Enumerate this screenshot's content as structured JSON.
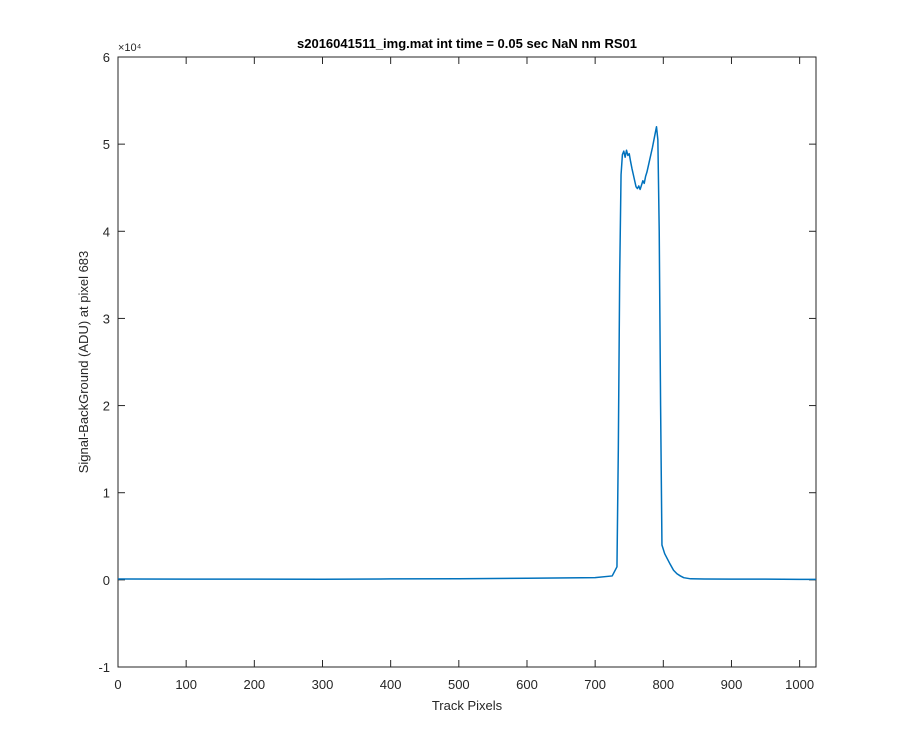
{
  "chart_data": {
    "type": "line",
    "title": "s2016041511_img.mat int time = 0.05 sec  NaN nm RS01",
    "xlabel": "Track Pixels",
    "ylabel": "Signal-BackGround (ADU) at pixel 683",
    "y_exponent_label": "×10⁴",
    "xlim": [
      0,
      1024
    ],
    "ylim": [
      -10000,
      60000
    ],
    "x_ticks": [
      0,
      100,
      200,
      300,
      400,
      500,
      600,
      700,
      800,
      900,
      1000
    ],
    "y_ticks": [
      -10000,
      0,
      10000,
      20000,
      30000,
      40000,
      50000,
      60000
    ],
    "y_tick_labels": [
      "-1",
      "0",
      "1",
      "2",
      "3",
      "4",
      "5",
      "6"
    ],
    "grid": false,
    "series_color": "#0072BD",
    "series": [
      {
        "name": "",
        "points": [
          [
            0,
            100
          ],
          [
            100,
            80
          ],
          [
            200,
            90
          ],
          [
            300,
            70
          ],
          [
            400,
            110
          ],
          [
            500,
            120
          ],
          [
            600,
            180
          ],
          [
            700,
            260
          ],
          [
            725,
            450
          ],
          [
            732,
            1500
          ],
          [
            734,
            15000
          ],
          [
            736,
            35000
          ],
          [
            738,
            46500
          ],
          [
            740,
            48800
          ],
          [
            742,
            49200
          ],
          [
            744,
            48500
          ],
          [
            746,
            49300
          ],
          [
            748,
            48700
          ],
          [
            750,
            48900
          ],
          [
            752,
            48000
          ],
          [
            754,
            47200
          ],
          [
            756,
            46500
          ],
          [
            758,
            45800
          ],
          [
            760,
            45100
          ],
          [
            762,
            44900
          ],
          [
            764,
            45200
          ],
          [
            766,
            44800
          ],
          [
            768,
            45300
          ],
          [
            770,
            45800
          ],
          [
            772,
            45500
          ],
          [
            774,
            46300
          ],
          [
            776,
            46800
          ],
          [
            778,
            47500
          ],
          [
            780,
            48200
          ],
          [
            782,
            48900
          ],
          [
            784,
            49600
          ],
          [
            786,
            50400
          ],
          [
            788,
            51200
          ],
          [
            790,
            52000
          ],
          [
            792,
            50500
          ],
          [
            794,
            40000
          ],
          [
            796,
            20000
          ],
          [
            798,
            4000
          ],
          [
            802,
            3000
          ],
          [
            806,
            2400
          ],
          [
            810,
            1800
          ],
          [
            815,
            1100
          ],
          [
            820,
            700
          ],
          [
            825,
            450
          ],
          [
            830,
            250
          ],
          [
            840,
            120
          ],
          [
            860,
            100
          ],
          [
            900,
            90
          ],
          [
            950,
            80
          ],
          [
            1000,
            60
          ],
          [
            1024,
            60
          ]
        ]
      }
    ]
  }
}
